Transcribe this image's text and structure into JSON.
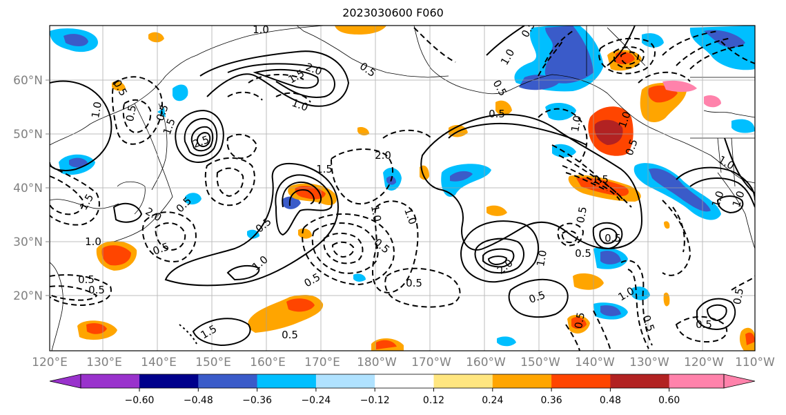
{
  "title": "2023030600 F060",
  "lat_labels": [
    "60°N",
    "50°N",
    "40°N",
    "30°N",
    "20°N"
  ],
  "lon_labels": [
    "120°E",
    "130°E",
    "140°E",
    "150°E",
    "160°E",
    "170°E",
    "180°W",
    "170°W",
    "160°W",
    "150°W",
    "140°W",
    "130°W",
    "120°W",
    "110°W"
  ],
  "colorbar": {
    "ticks": [
      "−0.60",
      "−0.48",
      "−0.36",
      "−0.24",
      "−0.12",
      "0.12",
      "0.24",
      "0.36",
      "0.48",
      "0.60"
    ],
    "colors": [
      "#9932cc",
      "#00008b",
      "#3a5bc9",
      "#00bfff",
      "#b0e2ff",
      "#ffffff",
      "#ffe680",
      "#ffa500",
      "#ff4500",
      "#b22222",
      "#ff82ab"
    ]
  },
  "contour_labels": [
    "1.0",
    "1.5",
    "0.5",
    "2.0",
    "1.0",
    "0.5",
    "2.5",
    "1.5",
    "0.5",
    "1.0",
    "0.5",
    "2.0",
    "1.5",
    "0.5",
    "1.0",
    "0.5",
    "0.5",
    "1.5",
    "2.0",
    "1.0",
    "0.5",
    "1.0",
    "0.5",
    "1.0",
    "0.5",
    "0.5",
    "1.0",
    "0.5",
    "0.5",
    "0.5",
    "2.0",
    "1.0",
    "0.5",
    "0.5",
    "0.5",
    "1.0",
    "0.5",
    "0.5",
    "0.5",
    "1.0",
    "1.0",
    "1.0",
    "1.5",
    "0.5",
    "1.0",
    "1.0",
    "0.5",
    "0.5",
    "1.5",
    "0.5",
    "0.5"
  ]
}
